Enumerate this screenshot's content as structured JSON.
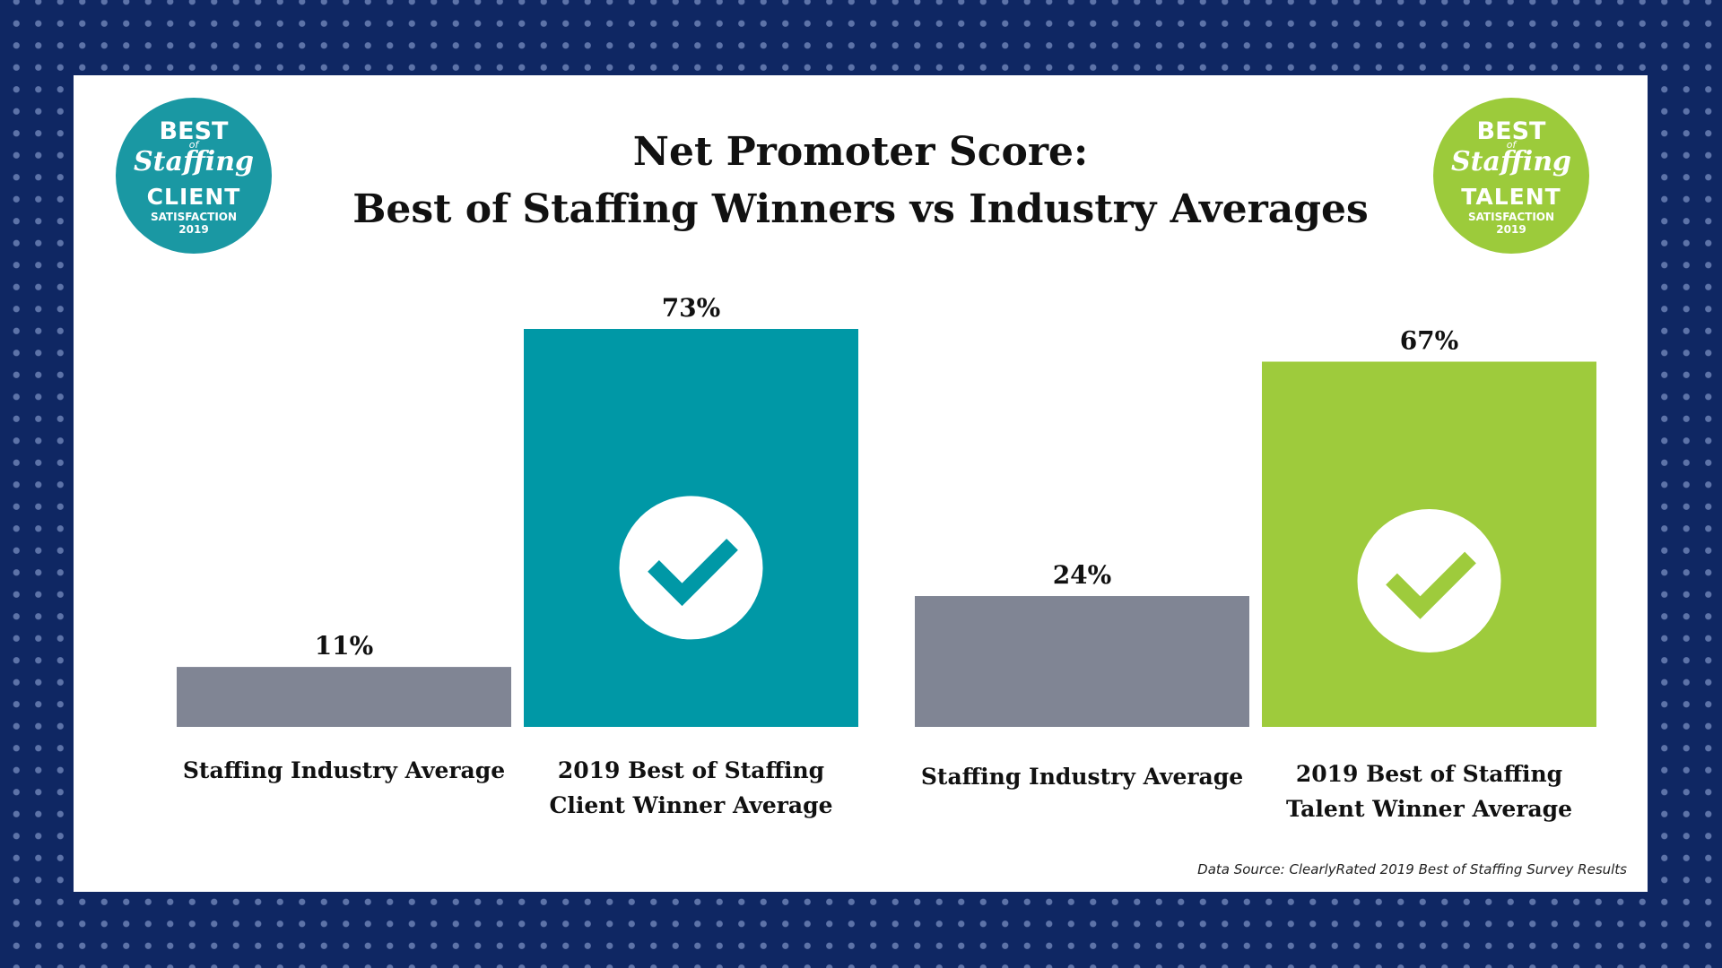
{
  "title": {
    "line1": "Net Promoter Score:",
    "line2": "Best of Staffing Winners vs Industry Averages"
  },
  "badges": {
    "client": {
      "best": "BEST",
      "of": "of",
      "staffing": "Staffing",
      "kind": "CLIENT",
      "satisfaction": "SATISFACTION",
      "year": "2019",
      "color": "#1a98a3"
    },
    "talent": {
      "best": "BEST",
      "of": "of",
      "staffing": "Staffing",
      "kind": "TALENT",
      "satisfaction": "SATISFACTION",
      "year": "2019",
      "color": "#9ccb3b"
    }
  },
  "chart_data": {
    "type": "bar",
    "title": "Net Promoter Score: Best of Staffing Winners vs Industry Averages",
    "ylim": [
      0,
      73
    ],
    "grid": false,
    "legend": "none",
    "categories": [
      [
        "Staffing Industry Average"
      ],
      [
        "2019 Best of Staffing",
        "Client Winner Average"
      ],
      [
        "Staffing Industry Average"
      ],
      [
        "2019 Best of Staffing",
        "Talent Winner Average"
      ]
    ],
    "values": [
      11,
      73,
      24,
      67
    ],
    "value_labels": [
      "11%",
      "73%",
      "24%",
      "67%"
    ],
    "colors": [
      "#808594",
      "#0098a6",
      "#808594",
      "#9ecb3c"
    ],
    "checkmarks": [
      false,
      true,
      false,
      true
    ]
  },
  "source": "Data Source: ClearlyRated 2019 Best of Staffing Survey Results"
}
